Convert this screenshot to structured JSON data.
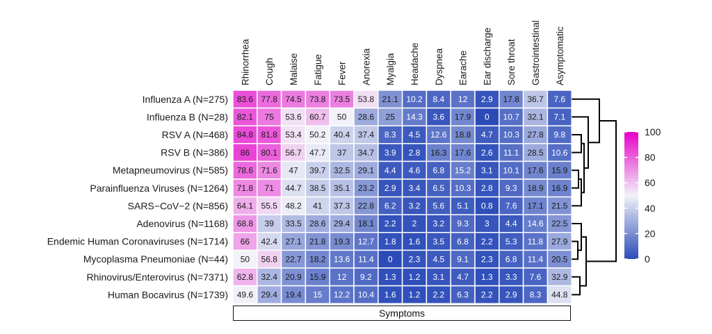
{
  "chart_data": {
    "type": "heatmap",
    "title": "",
    "xlabel": "Symptoms",
    "ylabel": "",
    "columns": [
      "Rhinorrhea",
      "Cough",
      "Malaise",
      "Fatigue",
      "Fever",
      "Anorexia",
      "Myalgia",
      "Headache",
      "Dyspnea",
      "Earache",
      "Ear discharge",
      "Sore throat",
      "Gastrointestinal",
      "Asymptomatic"
    ],
    "rows": [
      {
        "label": "Influenza A (N=275)",
        "values": [
          83.6,
          77.8,
          74.5,
          73.8,
          73.5,
          53.8,
          21.1,
          10.2,
          8.4,
          12,
          2.9,
          17.8,
          36.7,
          7.6
        ]
      },
      {
        "label": "Influenza B (N=28)",
        "values": [
          82.1,
          75,
          53.6,
          60.7,
          50,
          28.6,
          25,
          14.3,
          3.6,
          17.9,
          0,
          10.7,
          32.1,
          7.1
        ]
      },
      {
        "label": "RSV A (N=468)",
        "values": [
          84.8,
          81.8,
          53.4,
          50.2,
          40.4,
          37.4,
          8.3,
          4.5,
          12.6,
          18.8,
          4.7,
          10.3,
          27.8,
          9.8
        ]
      },
      {
        "label": "RSV B (N=386)",
        "values": [
          86,
          80.1,
          56.7,
          47.7,
          37,
          34.7,
          3.9,
          2.8,
          16.3,
          17.6,
          2.6,
          11.1,
          28.5,
          10.6
        ]
      },
      {
        "label": "Metapneumovirus (N=585)",
        "values": [
          78.6,
          71.6,
          47,
          39.7,
          32.5,
          29.1,
          4.4,
          4.6,
          6.8,
          15.2,
          3.1,
          10.1,
          17.6,
          15.9
        ]
      },
      {
        "label": "Parainfluenza Viruses (N=1264)",
        "values": [
          71.8,
          71,
          44.7,
          38.5,
          35.1,
          23.2,
          2.9,
          3.4,
          6.5,
          10.3,
          2.8,
          9.3,
          18.9,
          16.9
        ]
      },
      {
        "label": "SARS−CoV−2 (N=856)",
        "values": [
          64.1,
          55.5,
          48.2,
          41,
          37.3,
          22.8,
          6.2,
          3.2,
          5.6,
          5.1,
          0.8,
          7.6,
          17.1,
          21.5
        ]
      },
      {
        "label": "Adenovirus (N=1168)",
        "values": [
          68.8,
          39,
          33.5,
          28.6,
          29.4,
          18.1,
          2.2,
          2,
          3.2,
          9.3,
          3,
          4.4,
          14.6,
          22.5
        ]
      },
      {
        "label": "Endemic Human Coronaviruses (N=1714)",
        "values": [
          66,
          42.4,
          27.1,
          21.8,
          19.3,
          12.7,
          1.8,
          1.6,
          3.5,
          6.8,
          2.2,
          5.3,
          11.8,
          27.9
        ]
      },
      {
        "label": "Mycoplasma Pneumoniae (N=44)",
        "values": [
          50,
          56.8,
          22.7,
          18.2,
          13.6,
          11.4,
          0,
          2.3,
          4.5,
          9.1,
          2.3,
          6.8,
          11.4,
          20.5
        ]
      },
      {
        "label": "Rhinovirus/Enterovirus (N=7371)",
        "values": [
          62.8,
          32.4,
          20.9,
          15.9,
          12,
          9.2,
          1.3,
          1.2,
          3.1,
          4.7,
          1.3,
          3.3,
          7.6,
          32.9
        ]
      },
      {
        "label": "Human Bocavirus (N=1739)",
        "values": [
          49.6,
          29.4,
          19.4,
          15,
          12.2,
          10.4,
          1.6,
          1.2,
          2.2,
          6.3,
          2.2,
          2.9,
          8.3,
          44.8
        ]
      }
    ],
    "color_scale": {
      "min": 0,
      "max": 100,
      "stops": [
        {
          "value": 0,
          "color": "#2b4bb8"
        },
        {
          "value": 50,
          "color": "#f2f2f8"
        },
        {
          "value": 100,
          "color": "#e600c8"
        }
      ],
      "ticks": [
        0,
        20,
        40,
        60,
        80,
        100
      ]
    },
    "legend": "right",
    "dendrogram": "rows-right"
  }
}
